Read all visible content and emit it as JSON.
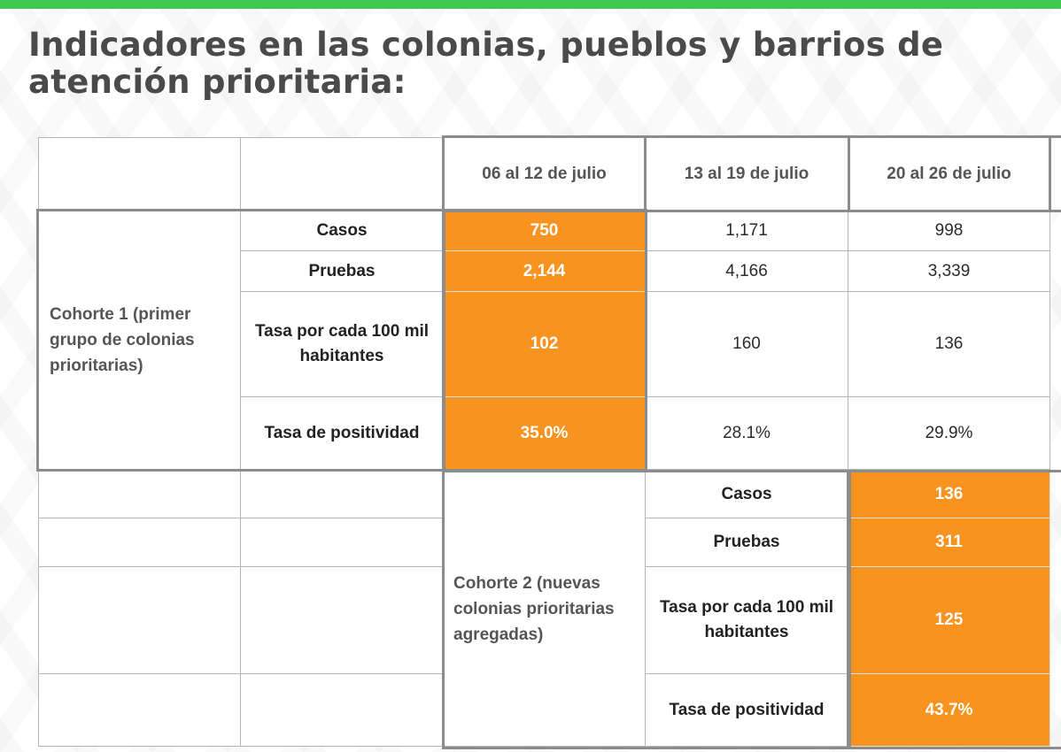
{
  "title": "Indicadores en las colonias, pueblos y barrios de atención prioritaria:",
  "columns": [
    "06 al 12 de julio",
    "13 al 19 de julio",
    "20 al 26 de julio"
  ],
  "cohort1": {
    "label": "Cohorte 1 (primer grupo de colonias prioritarias)",
    "rows": [
      {
        "label": "Casos",
        "values": [
          "750",
          "1,171",
          "998"
        ]
      },
      {
        "label": "Pruebas",
        "values": [
          "2,144",
          "4,166",
          "3,339"
        ]
      },
      {
        "label": "Tasa por cada 100 mil habitantes",
        "values": [
          "102",
          "160",
          "136"
        ]
      },
      {
        "label": "Tasa de positividad",
        "values": [
          "35.0%",
          "28.1%",
          "29.9%"
        ]
      }
    ]
  },
  "cohort2": {
    "label": "Cohorte 2 (nuevas colonias prioritarias agregadas)",
    "rows": [
      {
        "label": "Casos",
        "value": "136"
      },
      {
        "label": "Pruebas",
        "value": "311"
      },
      {
        "label": "Tasa por cada 100 mil habitantes",
        "value": "125"
      },
      {
        "label": "Tasa de positividad",
        "value": "43.7%"
      }
    ]
  },
  "colors": {
    "accent_green": "#3fca4f",
    "highlight_orange": "#f7931e",
    "border_gray": "#8c8c8c"
  }
}
